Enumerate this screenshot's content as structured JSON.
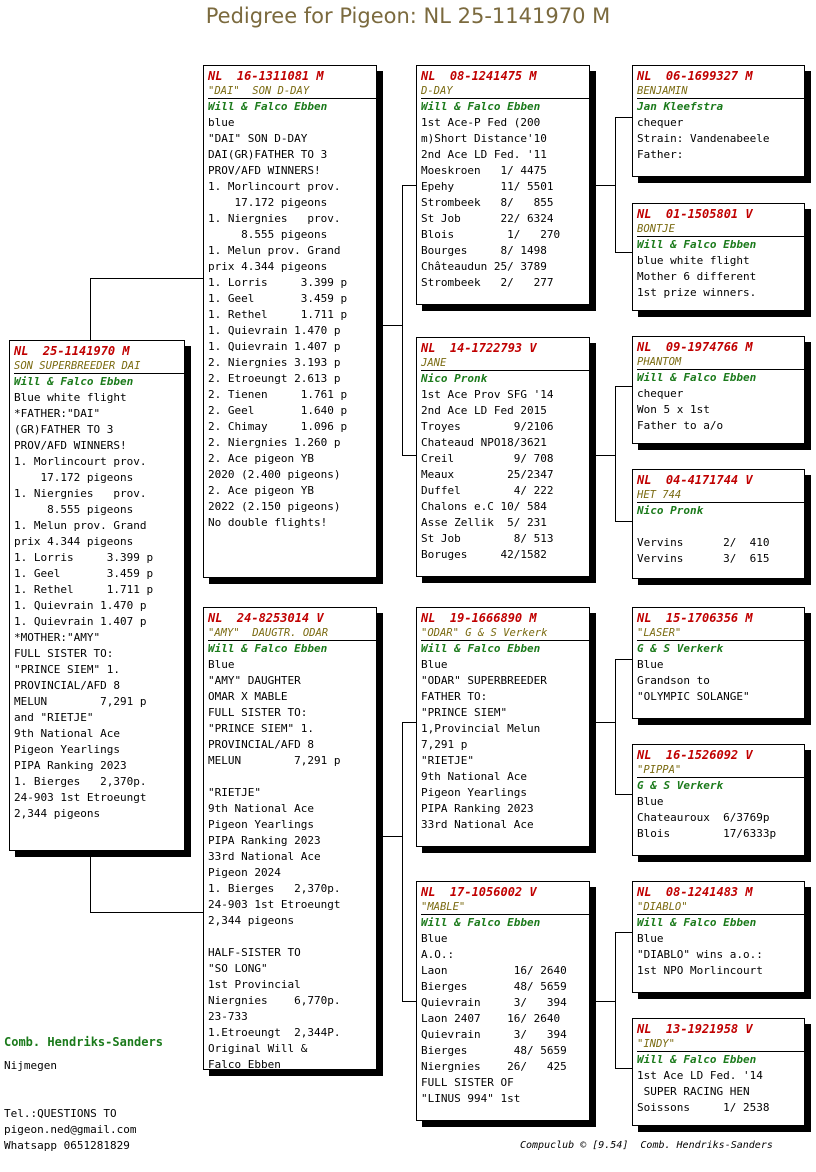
{
  "title": "Pedigree for Pigeon: NL  25-1141970 M",
  "subject": {
    "ring": "NL  25-1141970 M",
    "name": "SON SUPERBREEDER DAI",
    "owner": "Will & Falco Ebben",
    "body": "Blue white flight\n*FATHER:\"DAI\"\n(GR)FATHER TO 3\nPROV/AFD WINNERS!\n1. Morlincourt prov.\n    17.172 pigeons\n1. Niergnies   prov.\n     8.555 pigeons\n1. Melun prov. Grand\nprix 4.344 pigeons\n1. Lorris     3.399 p\n1. Geel       3.459 p\n1. Rethel     1.711 p\n1. Quievrain 1.470 p\n1. Quievrain 1.407 p\n*MOTHER:\"AMY\"\nFULL SISTER TO:\n\"PRINCE SIEM\" 1.\nPROVINCIAL/AFD 8\nMELUN        7,291 p\nand \"RIETJE\"\n9th National Ace\nPigeon Yearlings\nPIPA Ranking 2023\n1. Bierges   2,370p.\n24-903 1st Etroeungt\n2,344 pigeons"
  },
  "father": {
    "ring": "NL  16-1311081 M",
    "name": "\"DAI\"  SON D-DAY",
    "owner": "Will & Falco Ebben",
    "body": "blue\n\"DAI\" SON D-DAY\nDAI(GR)FATHER TO 3\nPROV/AFD WINNERS!\n1. Morlincourt prov.\n    17.172 pigeons\n1. Niergnies   prov.\n     8.555 pigeons\n1. Melun prov. Grand\nprix 4.344 pigeons\n1. Lorris     3.399 p\n1. Geel       3.459 p\n1. Rethel     1.711 p\n1. Quievrain 1.470 p\n1. Quievrain 1.407 p\n2. Niergnies 3.193 p\n2. Etroeungt 2.613 p\n2. Tienen     1.761 p\n2. Geel       1.640 p\n2. Chimay     1.096 p\n2. Niergnies 1.260 p\n2. Ace pigeon YB\n2020 (2.400 pigeons)\n2. Ace pigeon YB\n2022 (2.150 pigeons)\nNo double flights!"
  },
  "mother": {
    "ring": "NL  24-8253014 V",
    "name": "\"AMY\"  DAUGTR. ODAR",
    "owner": "Will & Falco Ebben",
    "body": "Blue\n\"AMY\" DAUGHTER\nOMAR X MABLE\nFULL SISTER TO:\n\"PRINCE SIEM\" 1.\nPROVINCIAL/AFD 8\nMELUN        7,291 p\n\n\"RIETJE\"\n9th National Ace\nPigeon Yearlings\nPIPA Ranking 2023\n33rd National Ace\nPigeon 2024\n1. Bierges   2,370p.\n24-903 1st Etroeungt\n2,344 pigeons\n\nHALF-SISTER TO\n\"SO LONG\"\n1st Provincial\nNiergnies    6,770p.\n23-733\n1.Etroeungt  2,344P.\nOriginal Will &\nFalco Ebben"
  },
  "ff": {
    "ring": "NL  08-1241475 M",
    "name": "D-DAY",
    "owner": "Will & Falco Ebben",
    "body": "1st Ace-P Fed (200\nm)Short Distance'10\n2nd Ace LD Fed. '11\nMoeskroen   1/ 4475\nEpehy       11/ 5501\nStrombeek   8/   855\nSt Job      22/ 6324\nBlois        1/   270\nBourges     8/ 1498\nChâteaudun 25/ 3789\nStrombeek   2/   277"
  },
  "fm": {
    "ring": "NL  14-1722793 V",
    "name": "JANE",
    "owner": "Nico Pronk",
    "body": "1st Ace Prov SFG '14\n2nd Ace LD Fed 2015\nTroyes        9/2106\nChateaud NPO18/3621\nCreil         9/ 708\nMeaux        25/2347\nDuffel        4/ 222\nChalons e.C 10/ 584\nAsse Zellik  5/ 231\nSt Job        8/ 513\nBoruges     42/1582"
  },
  "mf": {
    "ring": "NL  19-1666890 M",
    "name": "\"ODAR\" G & S Verkerk",
    "owner": "Will & Falco Ebben",
    "body": "Blue\n\"ODAR\" SUPERBREEDER\nFATHER TO:\n\"PRINCE SIEM\"\n1,Provincial Melun\n7,291 p\n\"RIETJE\"\n9th National Ace\nPigeon Yearlings\nPIPA Ranking 2023\n33rd National Ace"
  },
  "mm": {
    "ring": "NL  17-1056002 V",
    "name": "\"MABLE\"",
    "owner": "Will & Falco Ebben",
    "body": "Blue\nA.O.:\nLaon          16/ 2640\nBierges       48/ 5659\nQuievrain     3/   394\nLaon 2407    16/ 2640\nQuievrain     3/   394\nBierges       48/ 5659\nNiergnies    26/   425\nFULL SISTER OF\n\"LINUS 994\" 1st"
  },
  "fff": {
    "ring": "NL  06-1699327 M",
    "name": "BENJAMIN",
    "owner": "Jan Kleefstra",
    "body": "chequer\nStrain: Vandenabeele\nFather:"
  },
  "ffm": {
    "ring": "NL  01-1505801 V",
    "name": "BONTJE",
    "owner": "Will & Falco Ebben",
    "body": "blue white flight\nMother 6 different\n1st prize winners."
  },
  "fmf": {
    "ring": "NL  09-1974766 M",
    "name": "PHANTOM",
    "owner": "Will & Falco Ebben",
    "body": "chequer\nWon 5 x 1st\nFather to a/o"
  },
  "fmm": {
    "ring": "NL  04-4171744 V",
    "name": "HET 744",
    "owner": "Nico Pronk",
    "body": "\nVervins      2/  410\nVervins      3/  615"
  },
  "mff": {
    "ring": "NL  15-1706356 M",
    "name": "\"LASER\"",
    "owner": "G & S Verkerk",
    "body": "Blue\nGrandson to\n\"OLYMPIC SOLANGE\""
  },
  "mfm": {
    "ring": "NL  16-1526092 V",
    "name": "\"PIPPA\"",
    "owner": "G & S Verkerk",
    "body": "Blue\nChateauroux  6/3769p\nBlois        17/6333p"
  },
  "mmf": {
    "ring": "NL  08-1241483 M",
    "name": "\"DIABLO\"",
    "owner": "Will & Falco Ebben",
    "body": "Blue\n\"DIABLO\" wins a.o.:\n1st NPO Morlincourt"
  },
  "mmm": {
    "ring": "NL  13-1921958 V",
    "name": "\"INDY\"",
    "owner": "Will & Falco Ebben",
    "body": "1st Ace LD Fed. '14\n SUPER RACING HEN\nSoissons     1/ 2538"
  },
  "breeder": {
    "name": "Comb. Hendriks-Sanders",
    "city": "Nijmegen",
    "contact": "Tel.:QUESTIONS TO\npigeon.ned@gmail.com\nWhatsapp 0651281829"
  },
  "footer": "Compuclub © [9.54]  Comb. Hendriks-Sanders"
}
